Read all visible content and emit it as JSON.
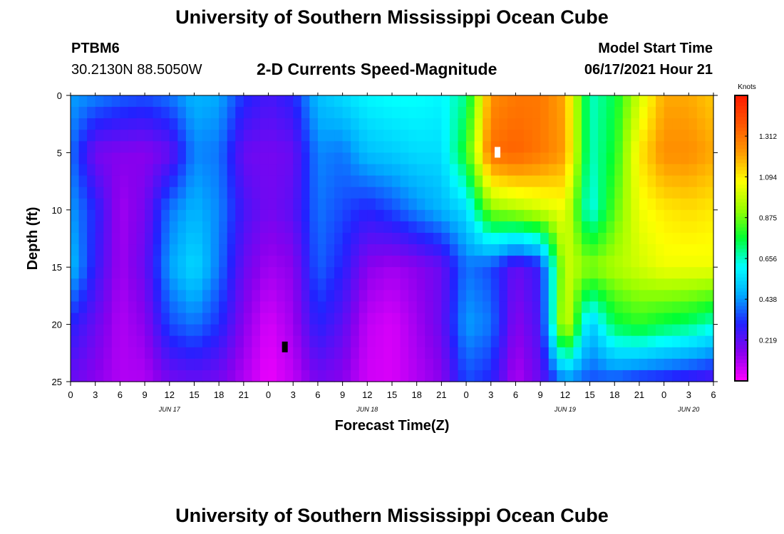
{
  "header": {
    "title": "University of Southern Mississippi Ocean Cube",
    "station_id": "PTBM6",
    "coords": "30.2130N  88.5050W",
    "chart_title": "2-D Currents Speed-Magnitude",
    "model_start_label": "Model Start Time",
    "model_start_value": "06/17/2021 Hour 21"
  },
  "footer": {
    "title": "University of Southern Mississippi Ocean Cube"
  },
  "chart_data": {
    "type": "heatmap",
    "title": "2-D Currents Speed-Magnitude",
    "xlabel": "Forecast Time(Z)",
    "ylabel": "Depth (ft)",
    "x_tick_labels": [
      "0",
      "3",
      "6",
      "9",
      "12",
      "15",
      "18",
      "21",
      "0",
      "3",
      "6",
      "9",
      "12",
      "15",
      "18",
      "21",
      "0",
      "3",
      "6",
      "9",
      "12",
      "15",
      "18",
      "21",
      "0",
      "3",
      "6"
    ],
    "x_date_labels": [
      {
        "label": "JUN 17",
        "tick_index": 4
      },
      {
        "label": "JUN 18",
        "tick_index": 12
      },
      {
        "label": "JUN 19",
        "tick_index": 20
      },
      {
        "label": "JUN 20",
        "tick_index": 25
      }
    ],
    "x_range_hours": [
      0,
      78
    ],
    "y_range_ft": [
      0,
      25
    ],
    "y_ticks": [
      0,
      5,
      10,
      15,
      20,
      25
    ],
    "y_inverted": true,
    "colorbar": {
      "unit": "Knots",
      "tick_labels": [
        "1.312",
        "1.094",
        "0.875",
        "0.656",
        "0.438",
        "0.219"
      ],
      "tick_values": [
        1.312,
        1.094,
        0.875,
        0.656,
        0.438,
        0.219
      ],
      "range": [
        0.0,
        1.53
      ],
      "colormap": [
        "#ff00ff",
        "#8800ee",
        "#2222ff",
        "#00aaff",
        "#00ffff",
        "#00ff33",
        "#99ff00",
        "#ffff00",
        "#ff9900",
        "#ff5500",
        "#ff1a00"
      ]
    },
    "depths_ft": [
      0,
      5,
      10,
      15,
      20,
      25
    ],
    "hours": [
      0,
      3,
      6,
      9,
      12,
      15,
      18,
      21,
      24,
      27,
      30,
      33,
      36,
      39,
      42,
      45,
      48,
      51,
      54,
      57,
      60,
      63,
      66,
      69,
      72,
      75,
      78
    ],
    "speed_knots": [
      [
        0.45,
        0.42,
        0.38,
        0.36,
        0.4,
        0.48,
        0.46,
        0.32,
        0.25,
        0.3,
        0.5,
        0.55,
        0.6,
        0.62,
        0.62,
        0.6,
        0.7,
        1.25,
        1.3,
        1.3,
        1.2,
        0.65,
        0.75,
        1.0,
        1.2,
        1.2,
        1.15
      ],
      [
        0.4,
        0.18,
        0.16,
        0.15,
        0.2,
        0.42,
        0.4,
        0.2,
        0.18,
        0.2,
        0.42,
        0.4,
        0.5,
        0.52,
        0.55,
        0.55,
        0.8,
        1.32,
        1.35,
        1.3,
        1.22,
        0.65,
        0.78,
        1.1,
        1.25,
        1.25,
        1.2
      ],
      [
        0.45,
        0.3,
        0.12,
        0.18,
        0.4,
        0.48,
        0.42,
        0.25,
        0.18,
        0.22,
        0.4,
        0.35,
        0.3,
        0.35,
        0.42,
        0.48,
        0.55,
        0.9,
        0.95,
        1.0,
        1.05,
        0.6,
        0.85,
        1.05,
        1.1,
        1.12,
        1.1
      ],
      [
        0.5,
        0.28,
        0.12,
        0.2,
        0.45,
        0.55,
        0.4,
        0.2,
        0.12,
        0.15,
        0.38,
        0.3,
        0.15,
        0.12,
        0.15,
        0.2,
        0.4,
        0.35,
        0.2,
        0.28,
        1.0,
        0.9,
        0.95,
        1.0,
        1.05,
        1.05,
        1.05
      ],
      [
        0.3,
        0.2,
        0.1,
        0.15,
        0.35,
        0.4,
        0.32,
        0.15,
        0.05,
        0.12,
        0.3,
        0.22,
        0.08,
        0.05,
        0.12,
        0.2,
        0.45,
        0.4,
        0.15,
        0.25,
        1.05,
        0.5,
        0.75,
        0.8,
        0.75,
        0.72,
        0.65
      ],
      [
        0.2,
        0.15,
        0.1,
        0.1,
        0.18,
        0.2,
        0.18,
        0.1,
        0.02,
        0.08,
        0.18,
        0.15,
        0.06,
        0.05,
        0.1,
        0.15,
        0.35,
        0.3,
        0.1,
        0.2,
        0.42,
        0.35,
        0.35,
        0.3,
        0.28,
        0.25,
        0.22
      ]
    ],
    "markers": [
      {
        "hour": 26.0,
        "depth_ft": 22,
        "color": "#000000"
      },
      {
        "hour": 51.8,
        "depth_ft": 5,
        "color": "#ffffff"
      }
    ]
  }
}
